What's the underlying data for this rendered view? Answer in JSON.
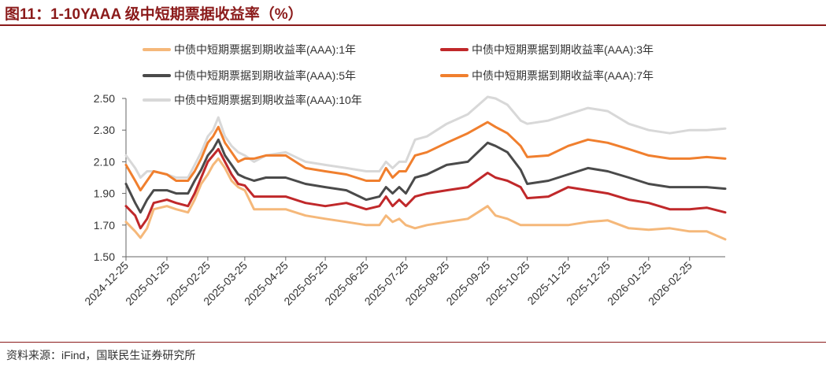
{
  "header": {
    "title": "图11：1-10YAAA 级中短期票据收益率（%）"
  },
  "footer": {
    "source": "资料来源：iFind，国联民生证券研究所"
  },
  "chart_data": {
    "type": "line",
    "title": "图11：1-10YAAA 级中短期票据收益率（%）",
    "xlabel": "",
    "ylabel": "",
    "ylim": [
      1.5,
      2.5
    ],
    "yticks": [
      "1.50",
      "1.70",
      "1.90",
      "2.10",
      "2.30",
      "2.50"
    ],
    "yticks_values": [
      1.5,
      1.7,
      1.9,
      2.1,
      2.3,
      2.5
    ],
    "xticks": [
      "2024-12-25",
      "2025-01-25",
      "2025-02-25",
      "2025-03-25",
      "2025-04-25",
      "2025-05-25",
      "2025-06-25",
      "2025-07-25",
      "2025-08-25",
      "2025-09-25",
      "2025-10-25",
      "2025-11-25",
      "2025-12-25",
      "2026-01-25",
      "2026-02-25"
    ],
    "x_range": [
      "2024-12-25",
      "2026-03-24"
    ],
    "grid": false,
    "legend_position": "top",
    "x": [
      "2024-12-25",
      "2025-01-01",
      "2025-01-05",
      "2025-01-10",
      "2025-01-15",
      "2025-01-25",
      "2025-02-01",
      "2025-02-10",
      "2025-02-15",
      "2025-02-20",
      "2025-02-25",
      "2025-03-01",
      "2025-03-05",
      "2025-03-10",
      "2025-03-15",
      "2025-03-20",
      "2025-03-25",
      "2025-04-01",
      "2025-04-10",
      "2025-04-25",
      "2025-05-10",
      "2025-05-25",
      "2025-06-10",
      "2025-06-25",
      "2025-07-05",
      "2025-07-10",
      "2025-07-15",
      "2025-07-20",
      "2025-07-25",
      "2025-08-01",
      "2025-08-10",
      "2025-08-25",
      "2025-09-10",
      "2025-09-25",
      "2025-10-01",
      "2025-10-10",
      "2025-10-20",
      "2025-10-25",
      "2025-11-10",
      "2025-11-25",
      "2025-12-10",
      "2025-12-25",
      "2026-01-10",
      "2026-01-25",
      "2026-02-10",
      "2026-02-25",
      "2026-03-10",
      "2026-03-24"
    ],
    "series": [
      {
        "name": "中债中短期票据到期收益率(AAA):1年",
        "color": "#f5b87a",
        "values": [
          1.72,
          1.66,
          1.62,
          1.68,
          1.8,
          1.82,
          1.8,
          1.78,
          1.86,
          1.96,
          2.02,
          2.08,
          2.12,
          2.06,
          1.98,
          1.94,
          1.92,
          1.8,
          1.8,
          1.8,
          1.76,
          1.74,
          1.72,
          1.7,
          1.7,
          1.76,
          1.72,
          1.74,
          1.7,
          1.68,
          1.7,
          1.72,
          1.74,
          1.82,
          1.76,
          1.74,
          1.7,
          1.7,
          1.7,
          1.7,
          1.72,
          1.73,
          1.68,
          1.67,
          1.68,
          1.66,
          1.66,
          1.61
        ]
      },
      {
        "name": "中债中短期票据到期收益率(AAA):3年",
        "color": "#c0282a",
        "values": [
          1.82,
          1.76,
          1.68,
          1.74,
          1.84,
          1.86,
          1.84,
          1.82,
          1.9,
          2.0,
          2.1,
          2.14,
          2.18,
          2.1,
          2.02,
          1.96,
          1.95,
          1.88,
          1.88,
          1.88,
          1.84,
          1.82,
          1.84,
          1.8,
          1.82,
          1.88,
          1.82,
          1.86,
          1.82,
          1.88,
          1.9,
          1.92,
          1.94,
          2.03,
          2.0,
          1.98,
          1.94,
          1.87,
          1.88,
          1.94,
          1.92,
          1.9,
          1.86,
          1.84,
          1.8,
          1.8,
          1.81,
          1.78
        ]
      },
      {
        "name": "中债中短期票据到期收益率(AAA):5年",
        "color": "#4a4a4a",
        "values": [
          1.96,
          1.84,
          1.78,
          1.86,
          1.92,
          1.92,
          1.9,
          1.9,
          1.98,
          2.05,
          2.14,
          2.18,
          2.24,
          2.14,
          2.08,
          2.02,
          2.0,
          1.98,
          2.0,
          2.0,
          1.96,
          1.94,
          1.92,
          1.86,
          1.88,
          1.94,
          1.9,
          1.94,
          1.9,
          2.0,
          2.02,
          2.08,
          2.1,
          2.22,
          2.2,
          2.16,
          2.05,
          1.96,
          1.98,
          2.02,
          2.06,
          2.04,
          2.0,
          1.96,
          1.94,
          1.94,
          1.94,
          1.93
        ]
      },
      {
        "name": "中债中短期票据到期收益率(AAA):7年",
        "color": "#f07f2e",
        "values": [
          2.08,
          1.98,
          1.92,
          1.98,
          2.04,
          2.02,
          1.98,
          1.98,
          2.04,
          2.12,
          2.22,
          2.26,
          2.32,
          2.22,
          2.16,
          2.1,
          2.12,
          2.12,
          2.14,
          2.14,
          2.06,
          2.04,
          2.02,
          1.98,
          1.98,
          2.06,
          2.0,
          2.04,
          2.04,
          2.14,
          2.16,
          2.22,
          2.28,
          2.35,
          2.32,
          2.28,
          2.2,
          2.13,
          2.14,
          2.2,
          2.24,
          2.22,
          2.18,
          2.14,
          2.12,
          2.12,
          2.13,
          2.12
        ]
      },
      {
        "name": "中债中短期票据到期收益率(AAA):10年",
        "color": "#d8d8d8",
        "values": [
          2.14,
          2.06,
          2.0,
          2.04,
          2.04,
          2.02,
          2.0,
          2.0,
          2.08,
          2.16,
          2.26,
          2.3,
          2.38,
          2.26,
          2.2,
          2.16,
          2.14,
          2.1,
          2.14,
          2.16,
          2.1,
          2.08,
          2.06,
          2.04,
          2.04,
          2.1,
          2.06,
          2.1,
          2.1,
          2.24,
          2.26,
          2.34,
          2.4,
          2.51,
          2.5,
          2.46,
          2.36,
          2.34,
          2.36,
          2.4,
          2.44,
          2.42,
          2.34,
          2.3,
          2.28,
          2.3,
          2.3,
          2.31
        ]
      }
    ]
  }
}
